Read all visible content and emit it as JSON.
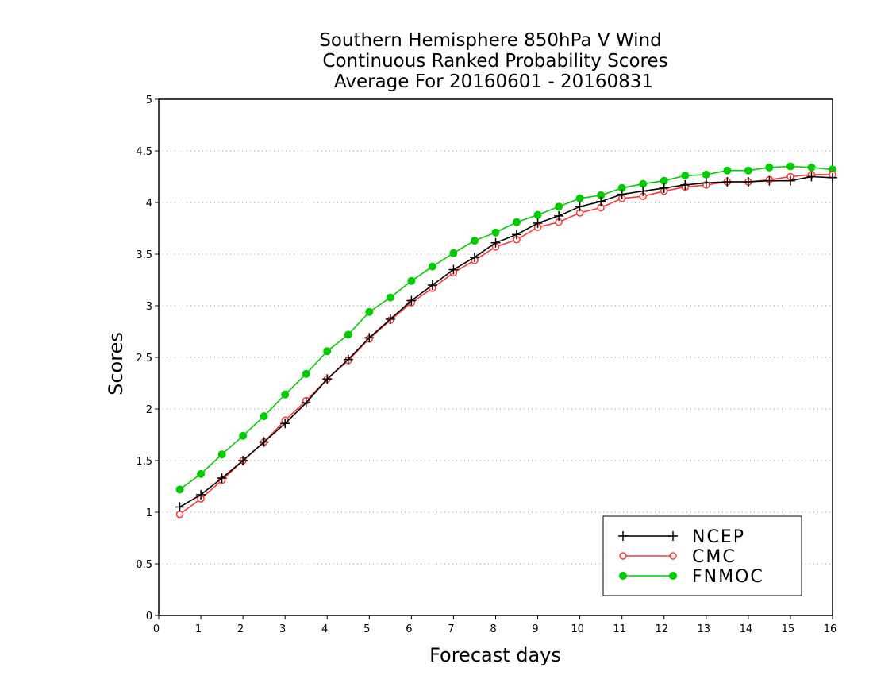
{
  "chart_data": {
    "type": "line",
    "title_lines": [
      "Southern Hemisphere 850hPa V Wind",
      "Continuous Ranked Probability Scores",
      "Average For 20160601 - 20160831"
    ],
    "xlabel": "Forecast days",
    "ylabel": "Scores",
    "xlim": [
      0,
      16
    ],
    "ylim": [
      0,
      5
    ],
    "x_ticks": [
      "0",
      "1",
      "2",
      "3",
      "4",
      "5",
      "6",
      "7",
      "8",
      "9",
      "10",
      "11",
      "12",
      "13",
      "14",
      "15",
      "16"
    ],
    "y_ticks": [
      "0",
      "0.5",
      "1",
      "1.5",
      "2",
      "2.5",
      "3",
      "3.5",
      "4",
      "4.5",
      "5"
    ],
    "grid": true,
    "legend_position": "bottom-right",
    "x": [
      0.5,
      1,
      1.5,
      2,
      2.5,
      3,
      3.5,
      4,
      4.5,
      5,
      5.5,
      6,
      6.5,
      7,
      7.5,
      8,
      8.5,
      9,
      9.5,
      10,
      10.5,
      11,
      11.5,
      12,
      12.5,
      13,
      13.5,
      14,
      14.5,
      15,
      15.5,
      16
    ],
    "series": [
      {
        "name": "NCEP",
        "color": "#000000",
        "marker": "plus",
        "values": [
          1.05,
          1.17,
          1.33,
          1.5,
          1.68,
          1.86,
          2.06,
          2.29,
          2.48,
          2.69,
          2.87,
          3.05,
          3.2,
          3.35,
          3.47,
          3.61,
          3.69,
          3.8,
          3.87,
          3.96,
          4.01,
          4.08,
          4.11,
          4.14,
          4.17,
          4.19,
          4.2,
          4.2,
          4.21,
          4.21,
          4.25,
          4.24
        ]
      },
      {
        "name": "CMC",
        "color": "#ff3333",
        "marker": "open-circle",
        "values": [
          0.98,
          1.13,
          1.31,
          1.5,
          1.68,
          1.89,
          2.08,
          2.29,
          2.47,
          2.68,
          2.86,
          3.03,
          3.17,
          3.32,
          3.44,
          3.57,
          3.64,
          3.76,
          3.81,
          3.9,
          3.95,
          4.04,
          4.06,
          4.11,
          4.15,
          4.17,
          4.2,
          4.2,
          4.22,
          4.25,
          4.27,
          4.27
        ]
      },
      {
        "name": "FNMOC",
        "color": "#00cc00",
        "marker": "filled-circle",
        "values": [
          1.22,
          1.37,
          1.56,
          1.74,
          1.93,
          2.14,
          2.34,
          2.56,
          2.72,
          2.94,
          3.08,
          3.24,
          3.38,
          3.51,
          3.63,
          3.71,
          3.81,
          3.88,
          3.96,
          4.04,
          4.07,
          4.14,
          4.18,
          4.21,
          4.26,
          4.27,
          4.31,
          4.31,
          4.34,
          4.35,
          4.34,
          4.32
        ]
      }
    ]
  }
}
